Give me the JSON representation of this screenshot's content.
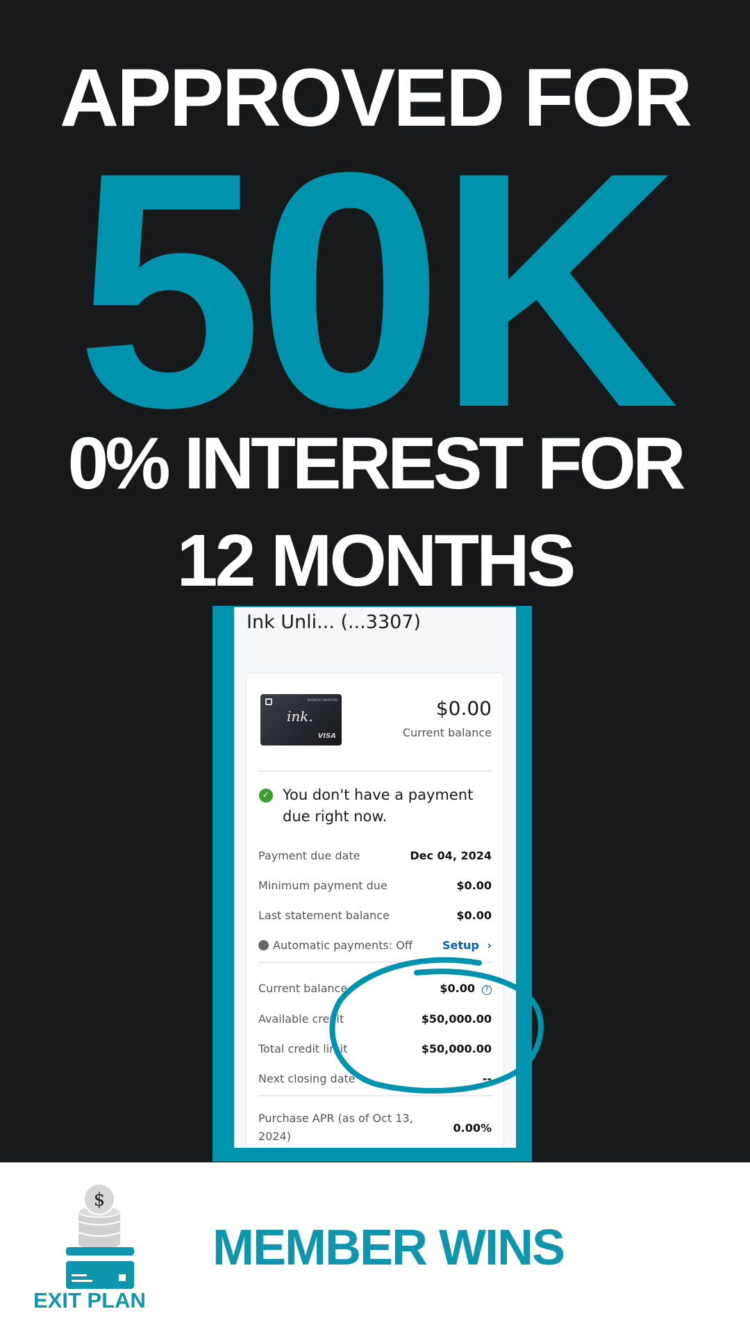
{
  "headline": {
    "line1": "APPROVED FOR",
    "big": "50K",
    "line3": "0% INTEREST FOR",
    "line4": "12 MONTHS"
  },
  "colors": {
    "accent": "#0093ad",
    "background": "#18191b",
    "link": "#0b5ea8",
    "success": "#3c9c2d"
  },
  "account": {
    "title": "Ink Unli... (...3307)",
    "card_image": {
      "brand_text": "BUSINESS UNLIMITED",
      "logo": "ink.",
      "network": "VISA"
    },
    "balance": "$0.00",
    "balance_label": "Current balance",
    "message": "You don't have a payment due right now.",
    "rows": [
      {
        "label": "Payment due date",
        "value": "Dec 04, 2024"
      },
      {
        "label": "Minimum payment due",
        "value": "$0.00"
      },
      {
        "label": "Last statement balance",
        "value": "$0.00"
      }
    ],
    "autopay": {
      "label": "Automatic payments: Off",
      "action": "Setup"
    },
    "rows2": [
      {
        "label": "Current balance",
        "value": "$0.00"
      },
      {
        "label": "Available credit",
        "value": "$50,000.00"
      },
      {
        "label": "Total credit limit",
        "value": "$50,000.00"
      },
      {
        "label": "Next closing date",
        "value": "--"
      }
    ],
    "apr": {
      "label_line1": "Purchase APR (as of Oct 13,",
      "label_line2": "2024)",
      "value": "0.00%"
    }
  },
  "footer": {
    "logo_text": "EXIT PLAN",
    "tagline": "MEMBER WINS"
  }
}
